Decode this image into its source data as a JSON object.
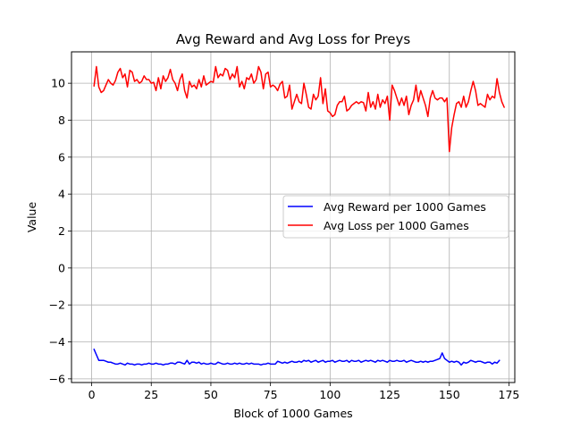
{
  "chart_data": {
    "type": "line",
    "title": "Avg Reward and Avg Loss for Preys",
    "xlabel": "Block of 1000 Games",
    "ylabel": "Value",
    "xlim": [
      -8.45,
      177.45
    ],
    "ylim": [
      -6.2,
      11.7
    ],
    "xticks": [
      0,
      25,
      50,
      75,
      100,
      125,
      150,
      175
    ],
    "yticks": [
      -6,
      -4,
      -2,
      0,
      2,
      4,
      6,
      8,
      10
    ],
    "ytick_labels": [
      "−6",
      "−4",
      "−2",
      "0",
      "2",
      "4",
      "6",
      "8",
      "10"
    ],
    "grid": true,
    "legend_position": "center-right",
    "series": [
      {
        "name": "Avg Reward per 1000 Games",
        "color": "#0000ff",
        "values": [
          -4.4,
          -4.7,
          -5.0,
          -5.0,
          -5.0,
          -5.05,
          -5.1,
          -5.1,
          -5.15,
          -5.2,
          -5.2,
          -5.15,
          -5.2,
          -5.25,
          -5.15,
          -5.2,
          -5.2,
          -5.25,
          -5.2,
          -5.2,
          -5.25,
          -5.2,
          -5.2,
          -5.15,
          -5.2,
          -5.2,
          -5.15,
          -5.2,
          -5.2,
          -5.25,
          -5.2,
          -5.2,
          -5.15,
          -5.15,
          -5.2,
          -5.1,
          -5.1,
          -5.15,
          -5.2,
          -5.0,
          -5.2,
          -5.1,
          -5.1,
          -5.15,
          -5.1,
          -5.2,
          -5.15,
          -5.2,
          -5.2,
          -5.15,
          -5.2,
          -5.2,
          -5.1,
          -5.15,
          -5.2,
          -5.2,
          -5.15,
          -5.2,
          -5.2,
          -5.15,
          -5.2,
          -5.15,
          -5.2,
          -5.2,
          -5.15,
          -5.2,
          -5.15,
          -5.2,
          -5.2,
          -5.2,
          -5.25,
          -5.2,
          -5.2,
          -5.15,
          -5.2,
          -5.2,
          -5.2,
          -5.05,
          -5.1,
          -5.15,
          -5.1,
          -5.15,
          -5.1,
          -5.05,
          -5.1,
          -5.1,
          -5.05,
          -5.1,
          -5.0,
          -5.05,
          -5.0,
          -5.1,
          -5.05,
          -5.0,
          -5.1,
          -5.05,
          -5.0,
          -5.1,
          -5.05,
          -5.05,
          -5.0,
          -5.1,
          -5.05,
          -5.0,
          -5.05,
          -5.05,
          -5.0,
          -5.1,
          -5.0,
          -5.05,
          -5.05,
          -5.0,
          -5.1,
          -5.05,
          -5.0,
          -5.05,
          -5.0,
          -5.05,
          -5.1,
          -5.0,
          -5.05,
          -5.0,
          -5.05,
          -5.1,
          -5.0,
          -5.05,
          -5.05,
          -5.0,
          -5.05,
          -5.05,
          -5.0,
          -5.1,
          -5.05,
          -5.0,
          -5.05,
          -5.1,
          -5.1,
          -5.05,
          -5.1,
          -5.05,
          -5.1,
          -5.05,
          -5.05,
          -5.0,
          -4.95,
          -4.9,
          -4.6,
          -4.9,
          -5.0,
          -5.1,
          -5.05,
          -5.1,
          -5.05,
          -5.1,
          -5.25,
          -5.1,
          -5.15,
          -5.1,
          -5.0,
          -5.05,
          -5.1,
          -5.05,
          -5.05,
          -5.1,
          -5.15,
          -5.1,
          -5.1,
          -5.2,
          -5.1,
          -5.15,
          -5.0
        ]
      },
      {
        "name": "Avg Loss per 1000 Games",
        "color": "#ff0000",
        "values": [
          9.85,
          10.9,
          9.8,
          9.5,
          9.6,
          9.9,
          10.2,
          10.0,
          9.9,
          10.15,
          10.6,
          10.8,
          10.3,
          10.5,
          9.8,
          10.7,
          10.6,
          10.1,
          10.2,
          10.0,
          10.1,
          10.4,
          10.2,
          10.2,
          10.0,
          10.05,
          9.6,
          10.3,
          9.7,
          10.4,
          10.1,
          10.3,
          10.75,
          10.2,
          10.0,
          9.6,
          10.2,
          10.5,
          9.6,
          9.2,
          10.1,
          9.8,
          9.9,
          9.7,
          10.2,
          9.8,
          10.4,
          9.9,
          10.0,
          10.1,
          10.05,
          10.9,
          10.3,
          10.5,
          10.4,
          10.8,
          10.7,
          10.2,
          10.5,
          10.3,
          10.9,
          9.8,
          10.1,
          9.7,
          10.3,
          10.2,
          10.5,
          10.0,
          10.2,
          10.9,
          10.6,
          9.7,
          10.5,
          10.6,
          9.8,
          9.9,
          9.8,
          9.6,
          9.95,
          10.1,
          9.2,
          9.3,
          9.9,
          8.6,
          9.0,
          9.4,
          9.0,
          8.9,
          10.0,
          9.4,
          8.7,
          8.6,
          9.4,
          9.1,
          9.3,
          10.3,
          8.9,
          9.7,
          8.5,
          8.4,
          8.2,
          8.3,
          8.8,
          9.0,
          9.0,
          9.3,
          8.5,
          8.6,
          8.8,
          8.9,
          9.0,
          8.9,
          9.0,
          8.95,
          8.5,
          9.5,
          8.7,
          9.0,
          8.6,
          9.4,
          8.7,
          9.1,
          8.9,
          9.3,
          8.0,
          9.9,
          9.6,
          9.2,
          8.8,
          9.2,
          8.8,
          9.3,
          8.3,
          8.8,
          9.1,
          9.9,
          9.0,
          9.6,
          9.2,
          8.8,
          8.2,
          9.2,
          9.6,
          9.2,
          9.1,
          9.2,
          9.2,
          9.0,
          9.2,
          6.3,
          7.6,
          8.3,
          8.9,
          9.0,
          8.7,
          9.3,
          8.7,
          9.0,
          9.6,
          10.1,
          9.6,
          8.8,
          8.9,
          8.8,
          8.7,
          9.4,
          9.1,
          9.3,
          9.2,
          10.25,
          9.5,
          9.0,
          8.7
        ]
      }
    ]
  }
}
